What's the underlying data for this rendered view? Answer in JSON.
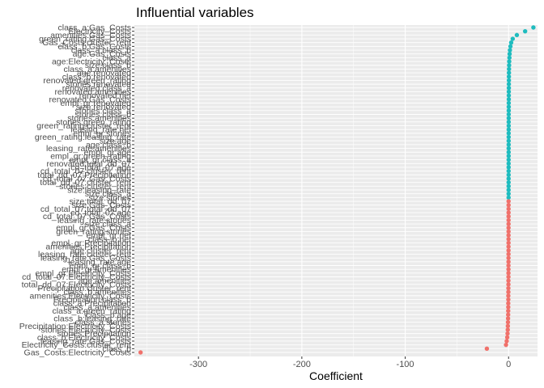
{
  "chart_data": {
    "type": "scatter",
    "orientation": "horizontal",
    "title": "Influential variables",
    "xlabel": "Coefficient",
    "ylabel": "",
    "xlim": [
      -362,
      28
    ],
    "xticks": [
      -300,
      -200,
      -100,
      0
    ],
    "xtick_labels": [
      "-300",
      "-200",
      "-100",
      "0"
    ],
    "grid": true,
    "legend": "none",
    "colors": {
      "positive": "#1fbcbf",
      "negative": "#f0716b",
      "panel": "#ebebeb",
      "grid": "#ffffff"
    },
    "labels": [
      "class_a:Gas_Costs",
      "Electricity_Costs",
      "amenities:Gas_Costs",
      "green_rating:Gas_Costs",
      "Gas_Costs:cluster_rent",
      "class_b:Gas_Costs",
      "class_a:class_b",
      "age:Gas_Costs",
      "class_a",
      "age:Electricity_Costs",
      "size:class_b",
      "class_a:amenities",
      "age:renovated",
      "class_b:renovated",
      "renovated:green_rating",
      "stories:renovated",
      "renovated:class_a",
      "renovated:amenities",
      "renovated:net",
      "renovated:Gas_Costs",
      "empl_gr:renovated",
      "size:renovated",
      "stories:class_a",
      "stories:class_b",
      "stories:amenities",
      "stories:green_rating",
      "green_rating:cluster_rent",
      "leasing_rate:net",
      "empl_gr:stories",
      "green_rating:leasing_rate",
      "size:age",
      "age:class_b",
      "leasing_rate:amenities",
      "empl_gr:age",
      "empl_gr:green_rating",
      "empl_gr:class_a",
      "renovated:total_dd_07",
      "cd_total_07:age",
      "cd_total_07:cluster_rent",
      "total_dd_07:Precipitation",
      "cd_total_07:Gas_Costs",
      "total_dd_07:cluster_rent",
      "stories:cluster_rent",
      "size:leasing_rate",
      "size:class_a",
      "size:stories",
      "size:total_dd_07",
      "size:Gas_Costs",
      "cd_total_07:total_dd_07",
      "cd_total_07:age",
      "cd_total_07:Gas_Costs",
      "leasing_rate:stories",
      "size:class_a",
      "empl_gr:Gas_Costs",
      "green_rating:stories",
      "empl_gr:net",
      "class_b:net",
      "empl_gr:Precipitation",
      "amenities:Precipitation",
      "age:cluster_rent",
      "leasing_rate:cluster_rent",
      "leasing_rate:Gas_Costs",
      "leasing_rate:age",
      "empl_gr:class_b",
      "empl_gr:amenities",
      "empl_gr:Electricity_Costs",
      "cd_total_07:Electricity_Costs",
      "age:amenities",
      "total_dd_07:Electricity_Costs",
      "Precipitation:cluster_rent",
      "class_b:amenities",
      "amenities:Electricity_Costs",
      "Precipitation:class_b",
      "class_a:Precipitation",
      "class_a:amenities",
      "class_a:green_rating",
      "class_b:age",
      "class_b:leasing_rate",
      "class_a:stories",
      "Precipitation:Electricity_Costs",
      "stories:Electricity_Costs",
      "stories:Precipitation",
      "class_b:Electricity_Costs",
      "leasing_rate:Gas_Costs",
      "Electricity_Costs:cluster_rent",
      "class_b",
      "Gas_Costs:Electricity_Costs"
    ],
    "points": [
      {
        "label": "class_a:Gas_Costs",
        "x": 24
      },
      {
        "label": "Electricity_Costs",
        "x": 16
      },
      {
        "label": "amenities:Gas_Costs",
        "x": 8
      },
      {
        "label": "green_rating:Gas_Costs",
        "x": 4
      },
      {
        "label": "Gas_Costs:cluster_rent",
        "x": 2.5
      },
      {
        "label": "class_b:Gas_Costs",
        "x": 1.8
      },
      {
        "label": "class_a:class_b",
        "x": 1.3
      },
      {
        "label": "age:Gas_Costs",
        "x": 1
      },
      {
        "label": "class_a",
        "x": 0.8
      },
      {
        "label": "age:Electricity_Costs",
        "x": 0.6
      },
      {
        "label": "size:class_b",
        "x": 0.5
      },
      {
        "label": "class_a:amenities",
        "x": 0.4
      },
      {
        "label": "age:renovated",
        "x": 0.35
      },
      {
        "label": "class_b:renovated",
        "x": 0.3
      },
      {
        "label": "renovated:green_rating",
        "x": 0.3
      },
      {
        "label": "stories:renovated",
        "x": 0.25
      },
      {
        "label": "renovated:class_a",
        "x": 0.25
      },
      {
        "label": "renovated:amenities",
        "x": 0.2
      },
      {
        "label": "renovated:net",
        "x": 0.2
      },
      {
        "label": "renovated:Gas_Costs",
        "x": 0.2
      },
      {
        "label": "empl_gr:renovated",
        "x": 0.15
      },
      {
        "label": "size:renovated",
        "x": 0.15
      },
      {
        "label": "stories:class_a",
        "x": 0.15
      },
      {
        "label": "stories:class_b",
        "x": 0.12
      },
      {
        "label": "stories:amenities",
        "x": 0.12
      },
      {
        "label": "stories:green_rating",
        "x": 0.1
      },
      {
        "label": "green_rating:cluster_rent",
        "x": 0.1
      },
      {
        "label": "leasing_rate:net",
        "x": 0.1
      },
      {
        "label": "empl_gr:stories",
        "x": 0.08
      },
      {
        "label": "green_rating:leasing_rate",
        "x": 0.08
      },
      {
        "label": "size:age",
        "x": 0.07
      },
      {
        "label": "age:class_b",
        "x": 0.07
      },
      {
        "label": "leasing_rate:amenities",
        "x": 0.06
      },
      {
        "label": "empl_gr:age",
        "x": 0.06
      },
      {
        "label": "empl_gr:green_rating",
        "x": 0.05
      },
      {
        "label": "empl_gr:class_a",
        "x": 0.05
      },
      {
        "label": "renovated:total_dd_07",
        "x": 0.04
      },
      {
        "label": "cd_total_07:age",
        "x": 0.04
      },
      {
        "label": "cd_total_07:cluster_rent",
        "x": 0.03
      },
      {
        "label": "total_dd_07:Precipitation",
        "x": 0.03
      },
      {
        "label": "cd_total_07:Gas_Costs",
        "x": 0.02
      },
      {
        "label": "total_dd_07:cluster_rent",
        "x": 0.02
      },
      {
        "label": "stories:cluster_rent",
        "x": 0.01
      },
      {
        "label": "size:leasing_rate",
        "x": 0.01
      },
      {
        "label": "size:class_a",
        "x": 0.005
      },
      {
        "label": "size:stories",
        "x": 0.003
      },
      {
        "label": "size:total_dd_07",
        "x": -0.003
      },
      {
        "label": "size:Gas_Costs",
        "x": -0.005
      },
      {
        "label": "cd_total_07:total_dd_07",
        "x": -0.01
      },
      {
        "label": "cd_total_07:age",
        "x": -0.01
      },
      {
        "label": "cd_total_07:Gas_Costs",
        "x": -0.02
      },
      {
        "label": "leasing_rate:stories",
        "x": -0.02
      },
      {
        "label": "size:class_a",
        "x": -0.03
      },
      {
        "label": "empl_gr:Gas_Costs",
        "x": -0.03
      },
      {
        "label": "green_rating:stories",
        "x": -0.04
      },
      {
        "label": "empl_gr:net",
        "x": -0.04
      },
      {
        "label": "class_b:net",
        "x": -0.05
      },
      {
        "label": "empl_gr:Precipitation",
        "x": -0.05
      },
      {
        "label": "amenities:Precipitation",
        "x": -0.06
      },
      {
        "label": "age:cluster_rent",
        "x": -0.06
      },
      {
        "label": "leasing_rate:cluster_rent",
        "x": -0.07
      },
      {
        "label": "leasing_rate:Gas_Costs",
        "x": -0.08
      },
      {
        "label": "leasing_rate:age",
        "x": -0.09
      },
      {
        "label": "empl_gr:class_b",
        "x": -0.1
      },
      {
        "label": "empl_gr:amenities",
        "x": -0.1
      },
      {
        "label": "empl_gr:Electricity_Costs",
        "x": -0.12
      },
      {
        "label": "cd_total_07:Electricity_Costs",
        "x": -0.12
      },
      {
        "label": "age:amenities",
        "x": -0.15
      },
      {
        "label": "total_dd_07:Electricity_Costs",
        "x": -0.15
      },
      {
        "label": "Precipitation:cluster_rent",
        "x": -0.2
      },
      {
        "label": "class_b:amenities",
        "x": -0.2
      },
      {
        "label": "amenities:Electricity_Costs",
        "x": -0.25
      },
      {
        "label": "Precipitation:class_b",
        "x": -0.25
      },
      {
        "label": "class_a:Precipitation",
        "x": -0.3
      },
      {
        "label": "class_a:amenities",
        "x": -0.3
      },
      {
        "label": "class_a:green_rating",
        "x": -0.35
      },
      {
        "label": "class_b:age",
        "x": -0.4
      },
      {
        "label": "class_b:leasing_rate",
        "x": -0.5
      },
      {
        "label": "class_a:stories",
        "x": -0.6
      },
      {
        "label": "Precipitation:Electricity_Costs",
        "x": -0.7
      },
      {
        "label": "stories:Electricity_Costs",
        "x": -0.8
      },
      {
        "label": "stories:Precipitation",
        "x": -1
      },
      {
        "label": "class_b:Electricity_Costs",
        "x": -1.3
      },
      {
        "label": "leasing_rate:Gas_Costs",
        "x": -1.8
      },
      {
        "label": "Electricity_Costs:cluster_rent",
        "x": -2.5
      },
      {
        "label": "class_b",
        "x": -21
      },
      {
        "label": "Gas_Costs:Electricity_Costs",
        "x": -356
      }
    ]
  }
}
